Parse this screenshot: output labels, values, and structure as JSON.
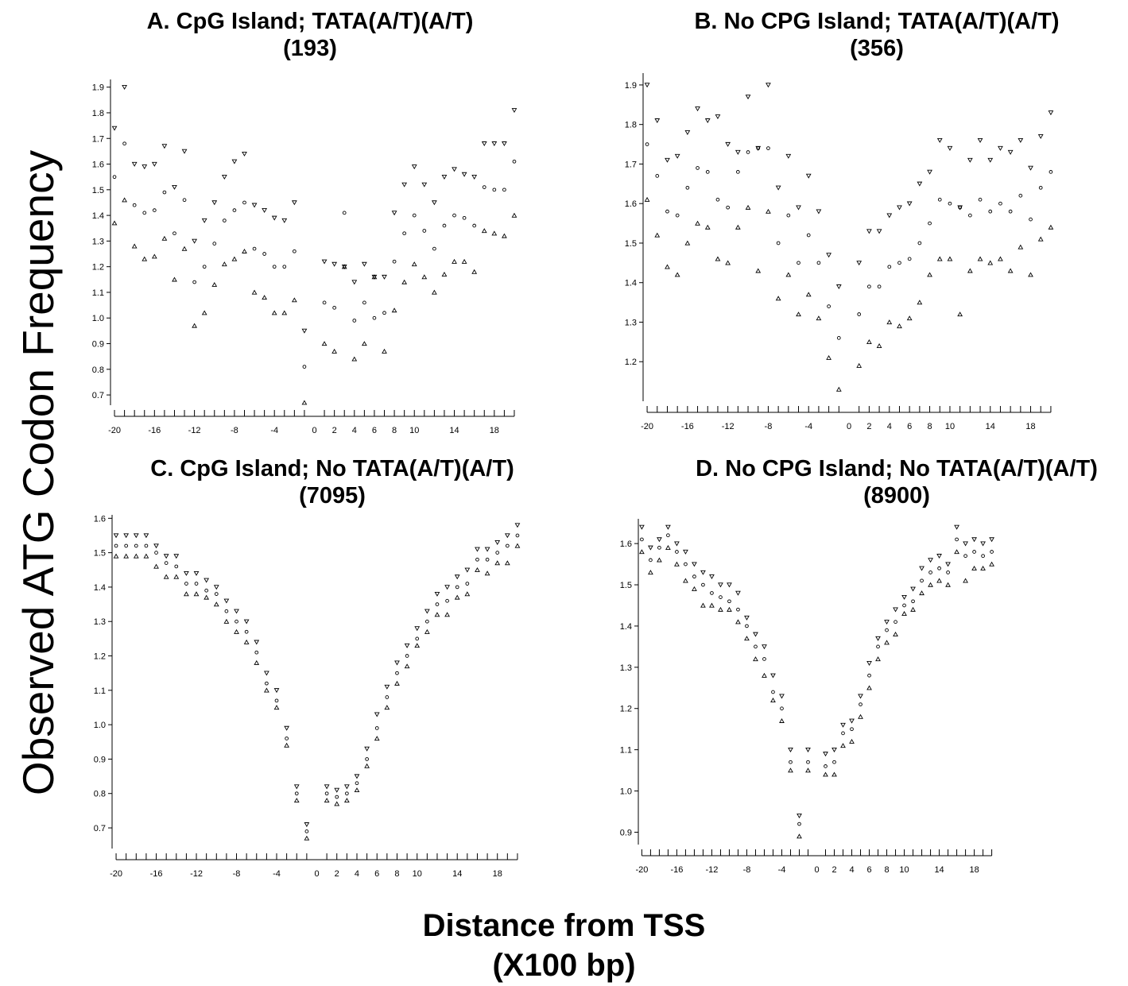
{
  "figure": {
    "ylabel": "Observed ATG Codon Frequency",
    "xlabel_line1": "Distance from TSS",
    "xlabel_line2": "(X100 bp)"
  },
  "chart_data": [
    {
      "id": "A",
      "type": "scatter",
      "title": "A. CpG Island; TATA(A/T)(A/T)",
      "subtitle": "(193)",
      "x": [
        -20,
        -19,
        -18,
        -17,
        -16,
        -15,
        -14,
        -13,
        -12,
        -11,
        -10,
        -9,
        -8,
        -7,
        -6,
        -5,
        -4,
        -3,
        -2,
        -1,
        1,
        2,
        3,
        4,
        5,
        6,
        7,
        8,
        9,
        10,
        11,
        12,
        13,
        14,
        15,
        16,
        17,
        18,
        19,
        20
      ],
      "x_ticks": [
        -20,
        -16,
        -12,
        -8,
        -4,
        0,
        2,
        4,
        6,
        8,
        10,
        14,
        18
      ],
      "y_ticks": [
        0.7,
        0.8,
        0.9,
        1.0,
        1.1,
        1.2,
        1.3,
        1.4,
        1.5,
        1.6,
        1.7,
        1.8,
        1.9
      ],
      "y_tick_labels": [
        "0.7",
        "0.8",
        "0.9",
        "1.0",
        "1.1",
        "1.2",
        "1.3",
        "1.4",
        "1.5",
        "1.6",
        "1.7",
        "1.8",
        "1.9"
      ],
      "ylim": [
        0.66,
        1.93
      ],
      "xlim": [
        -20.4,
        20.4
      ],
      "series": [
        {
          "marker": "triangle-down",
          "values": [
            1.74,
            1.9,
            1.6,
            1.59,
            1.6,
            1.67,
            1.51,
            1.65,
            1.3,
            1.38,
            1.45,
            1.55,
            1.61,
            1.64,
            1.44,
            1.42,
            1.39,
            1.38,
            1.45,
            0.95,
            1.22,
            1.21,
            1.2,
            1.14,
            1.21,
            1.16,
            1.16,
            1.41,
            1.52,
            1.59,
            1.52,
            1.45,
            1.55,
            1.58,
            1.56,
            1.55,
            1.68,
            1.68,
            1.68,
            1.81
          ]
        },
        {
          "marker": "circle",
          "values": [
            1.55,
            1.68,
            1.44,
            1.41,
            1.42,
            1.49,
            1.33,
            1.46,
            1.14,
            1.2,
            1.29,
            1.38,
            1.42,
            1.45,
            1.27,
            1.25,
            1.2,
            1.2,
            1.26,
            0.81,
            1.06,
            1.04,
            1.41,
            0.99,
            1.06,
            1.0,
            1.02,
            1.22,
            1.33,
            1.4,
            1.34,
            1.27,
            1.36,
            1.4,
            1.39,
            1.36,
            1.51,
            1.5,
            1.5,
            1.61
          ]
        },
        {
          "marker": "triangle-up",
          "values": [
            1.37,
            1.46,
            1.28,
            1.23,
            1.24,
            1.31,
            1.15,
            1.27,
            0.97,
            1.02,
            1.13,
            1.21,
            1.23,
            1.26,
            1.1,
            1.08,
            1.02,
            1.02,
            1.07,
            0.67,
            0.9,
            0.87,
            1.2,
            0.84,
            0.9,
            1.16,
            0.87,
            1.03,
            1.14,
            1.21,
            1.16,
            1.1,
            1.17,
            1.22,
            1.22,
            1.18,
            1.34,
            1.33,
            1.32,
            1.4
          ]
        }
      ]
    },
    {
      "id": "B",
      "type": "scatter",
      "title": "B. No CPG Island; TATA(A/T)(A/T)",
      "subtitle": "(356)",
      "x": [
        -20,
        -19,
        -18,
        -17,
        -16,
        -15,
        -14,
        -13,
        -12,
        -11,
        -10,
        -9,
        -8,
        -7,
        -6,
        -5,
        -4,
        -3,
        -2,
        -1,
        1,
        2,
        3,
        4,
        5,
        6,
        7,
        8,
        9,
        10,
        11,
        12,
        13,
        14,
        15,
        16,
        17,
        18,
        19,
        20
      ],
      "x_ticks": [
        -20,
        -16,
        -12,
        -8,
        -4,
        0,
        2,
        4,
        6,
        8,
        10,
        14,
        18
      ],
      "y_ticks": [
        1.2,
        1.3,
        1.4,
        1.5,
        1.6,
        1.7,
        1.8,
        1.9
      ],
      "y_tick_labels": [
        "1.2",
        "1.3",
        "1.4",
        "1.5",
        "1.6",
        "1.7",
        "1.8",
        "1.9"
      ],
      "ylim": [
        1.1,
        1.93
      ],
      "xlim": [
        -20.4,
        20.4
      ],
      "series": [
        {
          "marker": "triangle-down",
          "values": [
            1.9,
            1.81,
            1.71,
            1.72,
            1.78,
            1.84,
            1.81,
            1.82,
            1.75,
            1.73,
            1.87,
            1.74,
            1.9,
            1.64,
            1.72,
            1.59,
            1.67,
            1.58,
            1.47,
            1.39,
            1.45,
            1.53,
            1.53,
            1.57,
            1.59,
            1.6,
            1.65,
            1.68,
            1.76,
            1.74,
            1.59,
            1.71,
            1.76,
            1.71,
            1.74,
            1.73,
            1.76,
            1.69,
            1.77,
            1.83
          ]
        },
        {
          "marker": "circle",
          "values": [
            1.75,
            1.67,
            1.58,
            1.57,
            1.64,
            1.69,
            1.68,
            1.61,
            1.59,
            1.68,
            1.73,
            1.74,
            1.74,
            1.5,
            1.57,
            1.45,
            1.52,
            1.45,
            1.34,
            1.26,
            1.32,
            1.39,
            1.39,
            1.44,
            1.45,
            1.46,
            1.5,
            1.55,
            1.61,
            1.6,
            1.59,
            1.57,
            1.61,
            1.58,
            1.6,
            1.58,
            1.62,
            1.56,
            1.64,
            1.68
          ]
        },
        {
          "marker": "triangle-up",
          "values": [
            1.61,
            1.52,
            1.44,
            1.42,
            1.5,
            1.55,
            1.54,
            1.46,
            1.45,
            1.54,
            1.59,
            1.43,
            1.58,
            1.36,
            1.42,
            1.32,
            1.37,
            1.31,
            1.21,
            1.13,
            1.19,
            1.25,
            1.24,
            1.3,
            1.29,
            1.31,
            1.35,
            1.42,
            1.46,
            1.46,
            1.32,
            1.43,
            1.46,
            1.45,
            1.46,
            1.43,
            1.49,
            1.42,
            1.51,
            1.54
          ]
        }
      ]
    },
    {
      "id": "C",
      "type": "scatter",
      "title": "C. CpG Island; No TATA(A/T)(A/T)",
      "subtitle": "(7095)",
      "x": [
        -20,
        -19,
        -18,
        -17,
        -16,
        -15,
        -14,
        -13,
        -12,
        -11,
        -10,
        -9,
        -8,
        -7,
        -6,
        -5,
        -4,
        -3,
        -2,
        -1,
        1,
        2,
        3,
        4,
        5,
        6,
        7,
        8,
        9,
        10,
        11,
        12,
        13,
        14,
        15,
        16,
        17,
        18,
        19,
        20
      ],
      "x_ticks": [
        -20,
        -16,
        -12,
        -8,
        -4,
        0,
        2,
        4,
        6,
        8,
        10,
        14,
        18
      ],
      "y_ticks": [
        0.7,
        0.8,
        0.9,
        1.0,
        1.1,
        1.2,
        1.3,
        1.4,
        1.5,
        1.6
      ],
      "y_tick_labels": [
        "0.7",
        "0.8",
        "0.9",
        "1.0",
        "1.1",
        "1.2",
        "1.3",
        "1.4",
        "1.5",
        "1.6"
      ],
      "ylim": [
        0.64,
        1.61
      ],
      "xlim": [
        -20.4,
        20.4
      ],
      "series": [
        {
          "marker": "triangle-down",
          "values": [
            1.55,
            1.55,
            1.55,
            1.55,
            1.52,
            1.49,
            1.49,
            1.44,
            1.44,
            1.42,
            1.4,
            1.36,
            1.33,
            1.3,
            1.24,
            1.15,
            1.1,
            0.99,
            0.82,
            0.71,
            0.82,
            0.81,
            0.82,
            0.85,
            0.93,
            1.03,
            1.11,
            1.18,
            1.23,
            1.28,
            1.33,
            1.38,
            1.4,
            1.43,
            1.45,
            1.51,
            1.51,
            1.53,
            1.55,
            1.58
          ]
        },
        {
          "marker": "circle",
          "values": [
            1.52,
            1.52,
            1.52,
            1.52,
            1.5,
            1.47,
            1.46,
            1.41,
            1.41,
            1.39,
            1.38,
            1.33,
            1.3,
            1.27,
            1.21,
            1.12,
            1.07,
            0.96,
            0.8,
            0.69,
            0.8,
            0.79,
            0.8,
            0.83,
            0.9,
            0.99,
            1.08,
            1.15,
            1.2,
            1.25,
            1.3,
            1.35,
            1.36,
            1.4,
            1.41,
            1.48,
            1.48,
            1.5,
            1.52,
            1.55
          ]
        },
        {
          "marker": "triangle-up",
          "values": [
            1.49,
            1.49,
            1.49,
            1.49,
            1.46,
            1.43,
            1.43,
            1.38,
            1.38,
            1.37,
            1.35,
            1.3,
            1.27,
            1.24,
            1.18,
            1.1,
            1.05,
            0.94,
            0.78,
            0.67,
            0.78,
            0.77,
            0.78,
            0.81,
            0.88,
            0.96,
            1.05,
            1.12,
            1.17,
            1.23,
            1.27,
            1.32,
            1.32,
            1.37,
            1.38,
            1.45,
            1.44,
            1.47,
            1.47,
            1.52
          ]
        }
      ]
    },
    {
      "id": "D",
      "type": "scatter",
      "title": "D. No CPG Island; No TATA(A/T)(A/T)",
      "subtitle": "(8900)",
      "x": [
        -20,
        -19,
        -18,
        -17,
        -16,
        -15,
        -14,
        -13,
        -12,
        -11,
        -10,
        -9,
        -8,
        -7,
        -6,
        -5,
        -4,
        -3,
        -2,
        -1,
        1,
        2,
        3,
        4,
        5,
        6,
        7,
        8,
        9,
        10,
        11,
        12,
        13,
        14,
        15,
        16,
        17,
        18,
        19,
        20
      ],
      "x_ticks": [
        -20,
        -16,
        -12,
        -8,
        -4,
        0,
        2,
        4,
        6,
        8,
        10,
        14,
        18
      ],
      "y_ticks": [
        0.9,
        1.0,
        1.1,
        1.2,
        1.3,
        1.4,
        1.5,
        1.6
      ],
      "y_tick_labels": [
        "0.9",
        "1.0",
        "1.1",
        "1.2",
        "1.3",
        "1.4",
        "1.5",
        "1.6"
      ],
      "ylim": [
        0.87,
        1.66
      ],
      "xlim": [
        -20.4,
        20.4
      ],
      "series": [
        {
          "marker": "triangle-down",
          "values": [
            1.64,
            1.59,
            1.61,
            1.64,
            1.6,
            1.58,
            1.55,
            1.53,
            1.52,
            1.5,
            1.5,
            1.48,
            1.42,
            1.38,
            1.35,
            1.28,
            1.23,
            1.1,
            0.94,
            1.1,
            1.09,
            1.1,
            1.16,
            1.17,
            1.23,
            1.31,
            1.37,
            1.41,
            1.44,
            1.47,
            1.49,
            1.54,
            1.56,
            1.57,
            1.55,
            1.64,
            1.6,
            1.61,
            1.6,
            1.61
          ]
        },
        {
          "marker": "circle",
          "values": [
            1.61,
            1.56,
            1.59,
            1.62,
            1.58,
            1.55,
            1.52,
            1.5,
            1.48,
            1.47,
            1.46,
            1.44,
            1.4,
            1.35,
            1.32,
            1.24,
            1.2,
            1.07,
            0.92,
            1.07,
            1.06,
            1.07,
            1.14,
            1.15,
            1.21,
            1.28,
            1.35,
            1.39,
            1.41,
            1.45,
            1.46,
            1.51,
            1.53,
            1.54,
            1.53,
            1.61,
            1.57,
            1.58,
            1.57,
            1.58
          ]
        },
        {
          "marker": "triangle-up",
          "values": [
            1.58,
            1.53,
            1.56,
            1.59,
            1.55,
            1.51,
            1.49,
            1.45,
            1.45,
            1.44,
            1.44,
            1.41,
            1.37,
            1.32,
            1.28,
            1.22,
            1.17,
            1.05,
            0.89,
            1.05,
            1.04,
            1.04,
            1.11,
            1.12,
            1.18,
            1.25,
            1.32,
            1.36,
            1.38,
            1.43,
            1.44,
            1.48,
            1.5,
            1.51,
            1.5,
            1.58,
            1.51,
            1.54,
            1.54,
            1.55
          ]
        }
      ]
    }
  ]
}
